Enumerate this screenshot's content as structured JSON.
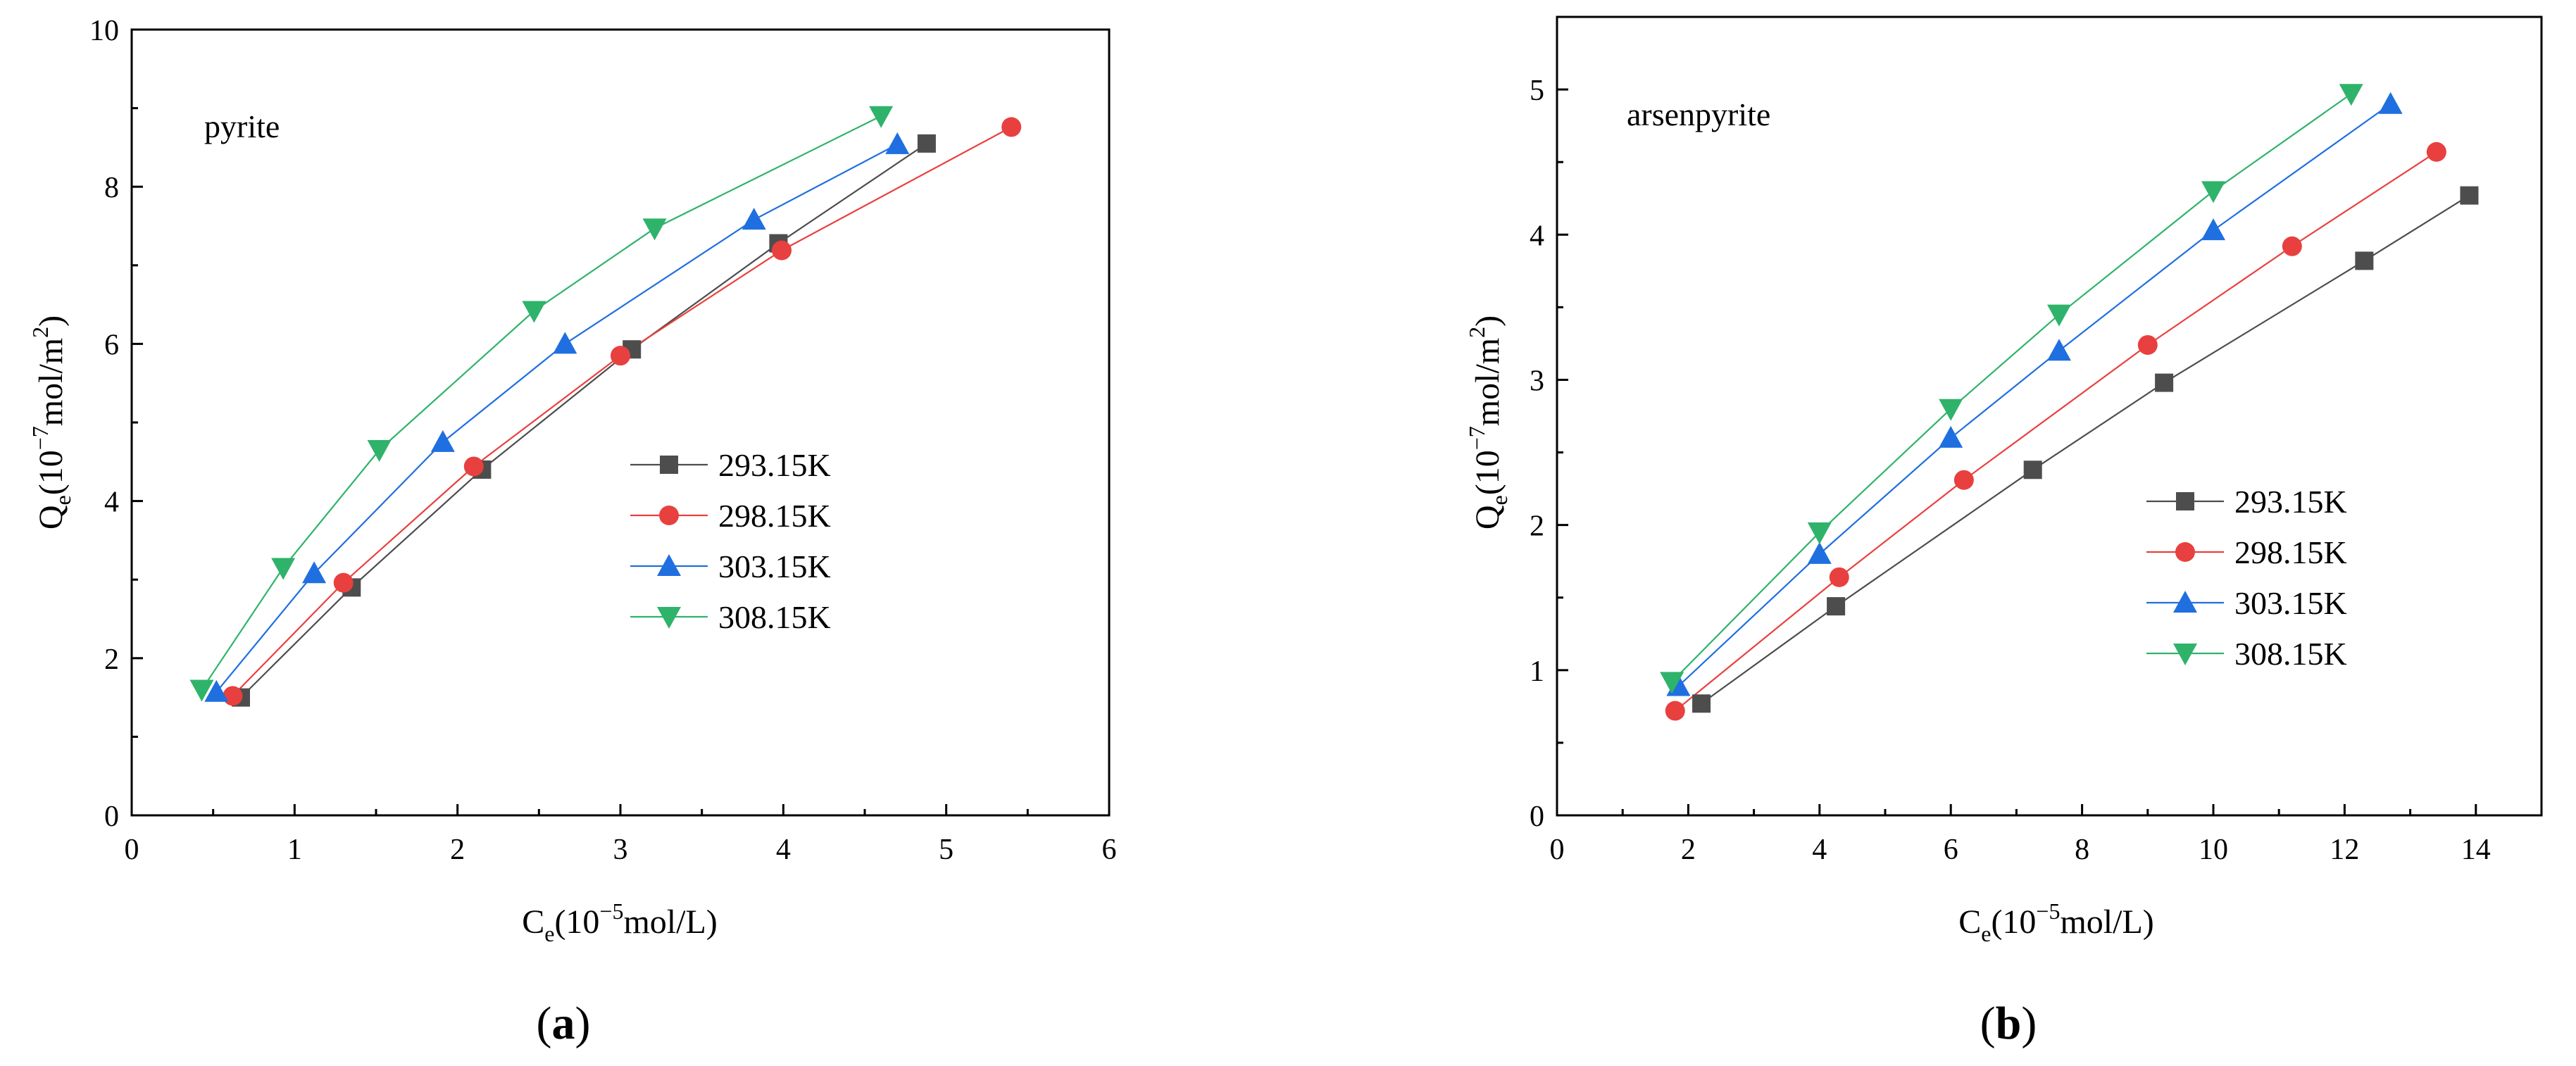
{
  "colors": {
    "293.15K": "#4d4d4d",
    "298.15K": "#e8403f",
    "303.15K": "#1f6fe0",
    "308.15K": "#2fb36a"
  },
  "chart_data": [
    {
      "type": "line",
      "panel_label": "a",
      "annotation": "pyrite",
      "xlabel_main": "C",
      "xlabel_sub": "e",
      "xlabel_rest1": "(10",
      "xlabel_sup": "−5",
      "xlabel_rest2": "mol/L)",
      "ylabel_main": "Q",
      "ylabel_sub": "e",
      "ylabel_rest1": "(10",
      "ylabel_sup": "−7",
      "ylabel_rest2": "mol/m",
      "ylabel_sup2": "2",
      "ylabel_rest3": ")",
      "xlim": [
        0,
        6
      ],
      "ylim": [
        0,
        10
      ],
      "xticks": [
        "0",
        "1",
        "2",
        "3",
        "4",
        "5",
        "6"
      ],
      "yticks": [
        "0",
        "2",
        "4",
        "6",
        "8",
        "10"
      ],
      "series": [
        {
          "name": "293.15K",
          "marker": "square",
          "x": [
            0.67,
            1.35,
            2.15,
            3.07,
            3.97,
            4.88
          ],
          "y": [
            1.5,
            2.9,
            4.4,
            5.93,
            7.28,
            8.55
          ]
        },
        {
          "name": "298.15K",
          "marker": "circle",
          "x": [
            0.62,
            1.3,
            2.1,
            3.0,
            3.99,
            5.4
          ],
          "y": [
            1.52,
            2.96,
            4.44,
            5.85,
            7.19,
            8.76
          ]
        },
        {
          "name": "303.15K",
          "marker": "triangle-up",
          "x": [
            0.52,
            1.12,
            1.91,
            2.66,
            3.82,
            4.7
          ],
          "y": [
            1.57,
            3.08,
            4.75,
            6.0,
            7.58,
            8.54
          ]
        },
        {
          "name": "308.15K",
          "marker": "triangle-down",
          "x": [
            0.43,
            0.93,
            1.52,
            2.47,
            3.21,
            4.6
          ],
          "y": [
            1.6,
            3.15,
            4.65,
            6.42,
            7.47,
            8.9
          ]
        }
      ]
    },
    {
      "type": "line",
      "panel_label": "b",
      "annotation": "arsenpyrite",
      "xlabel_main": "C",
      "xlabel_sub": "e",
      "xlabel_rest1": "(10",
      "xlabel_sup": "−5",
      "xlabel_rest2": "mol/L)",
      "ylabel_main": "Q",
      "ylabel_sub": "e",
      "ylabel_rest1": "(10",
      "ylabel_sup": "−7",
      "ylabel_rest2": "mol/m",
      "ylabel_sup2": "2",
      "ylabel_rest3": ")",
      "xlim": [
        0,
        15
      ],
      "ylim": [
        0,
        5.5
      ],
      "xticks": [
        "0",
        "2",
        "4",
        "6",
        "8",
        "10",
        "12",
        "14"
      ],
      "yticks": [
        "0",
        "1",
        "2",
        "3",
        "4",
        "5"
      ],
      "series": [
        {
          "name": "293.15K",
          "marker": "square",
          "x": [
            2.2,
            4.25,
            7.25,
            9.25,
            12.3,
            13.9
          ],
          "y": [
            0.77,
            1.44,
            2.38,
            2.98,
            3.82,
            4.27
          ]
        },
        {
          "name": "298.15K",
          "marker": "circle",
          "x": [
            1.8,
            4.3,
            6.2,
            9.0,
            11.2,
            13.4
          ],
          "y": [
            0.72,
            1.64,
            2.31,
            3.24,
            3.92,
            4.57
          ]
        },
        {
          "name": "303.15K",
          "marker": "triangle-up",
          "x": [
            1.85,
            4.0,
            6.0,
            7.65,
            10.0,
            12.7
          ],
          "y": [
            0.89,
            1.8,
            2.6,
            3.2,
            4.03,
            4.9
          ]
        },
        {
          "name": "308.15K",
          "marker": "triangle-down",
          "x": [
            1.75,
            4.0,
            6.0,
            7.65,
            10.0,
            12.1
          ],
          "y": [
            0.92,
            1.95,
            2.8,
            3.45,
            4.3,
            4.97
          ]
        }
      ]
    }
  ]
}
